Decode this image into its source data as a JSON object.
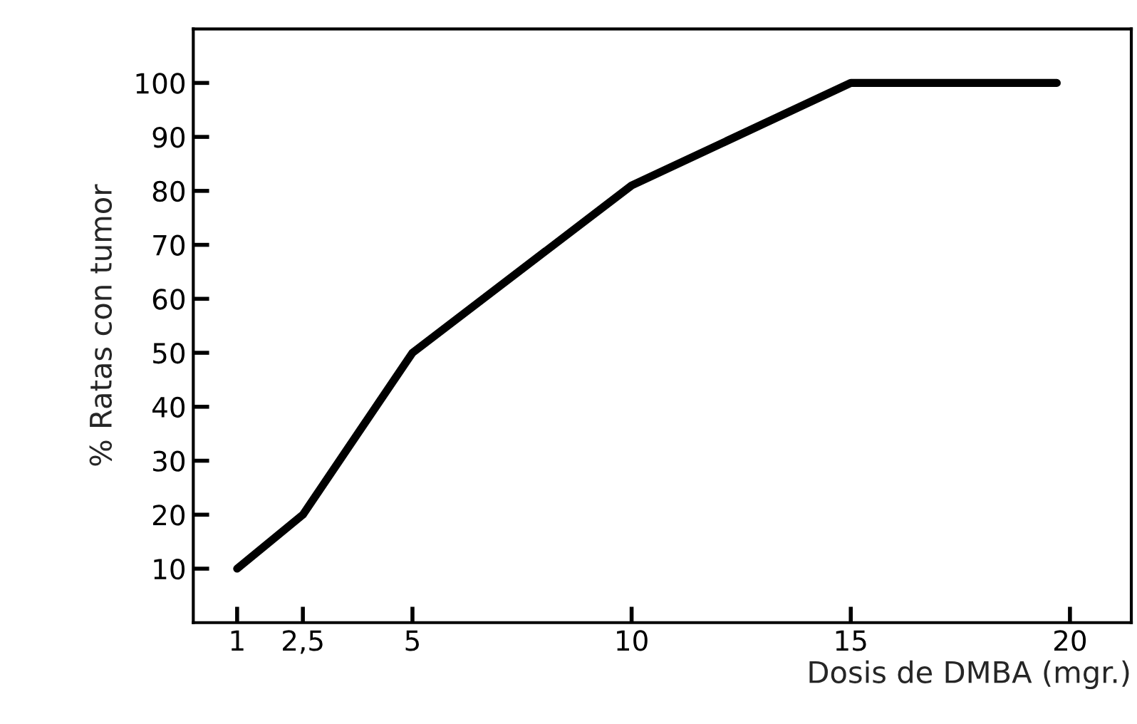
{
  "chart_data": {
    "type": "line",
    "xlabel": "Dosis de DMBA (mgr.)",
    "ylabel": "% Ratas con tumor",
    "x": [
      1,
      2.5,
      5,
      10,
      15,
      19.7
    ],
    "series": [
      {
        "color": "#000000",
        "values": [
          10,
          20,
          50,
          81,
          100,
          100
        ]
      }
    ],
    "xlim": [
      0,
      21.4
    ],
    "ylim": [
      0,
      110
    ],
    "xticks": [
      1,
      {
        "value": 2.5,
        "label": "2,5"
      },
      5,
      10,
      15,
      20
    ],
    "yticks": [
      10,
      20,
      30,
      40,
      50,
      60,
      70,
      80,
      90,
      100
    ],
    "grid": false,
    "legend": false,
    "marker": "none",
    "line_style": "solid"
  }
}
